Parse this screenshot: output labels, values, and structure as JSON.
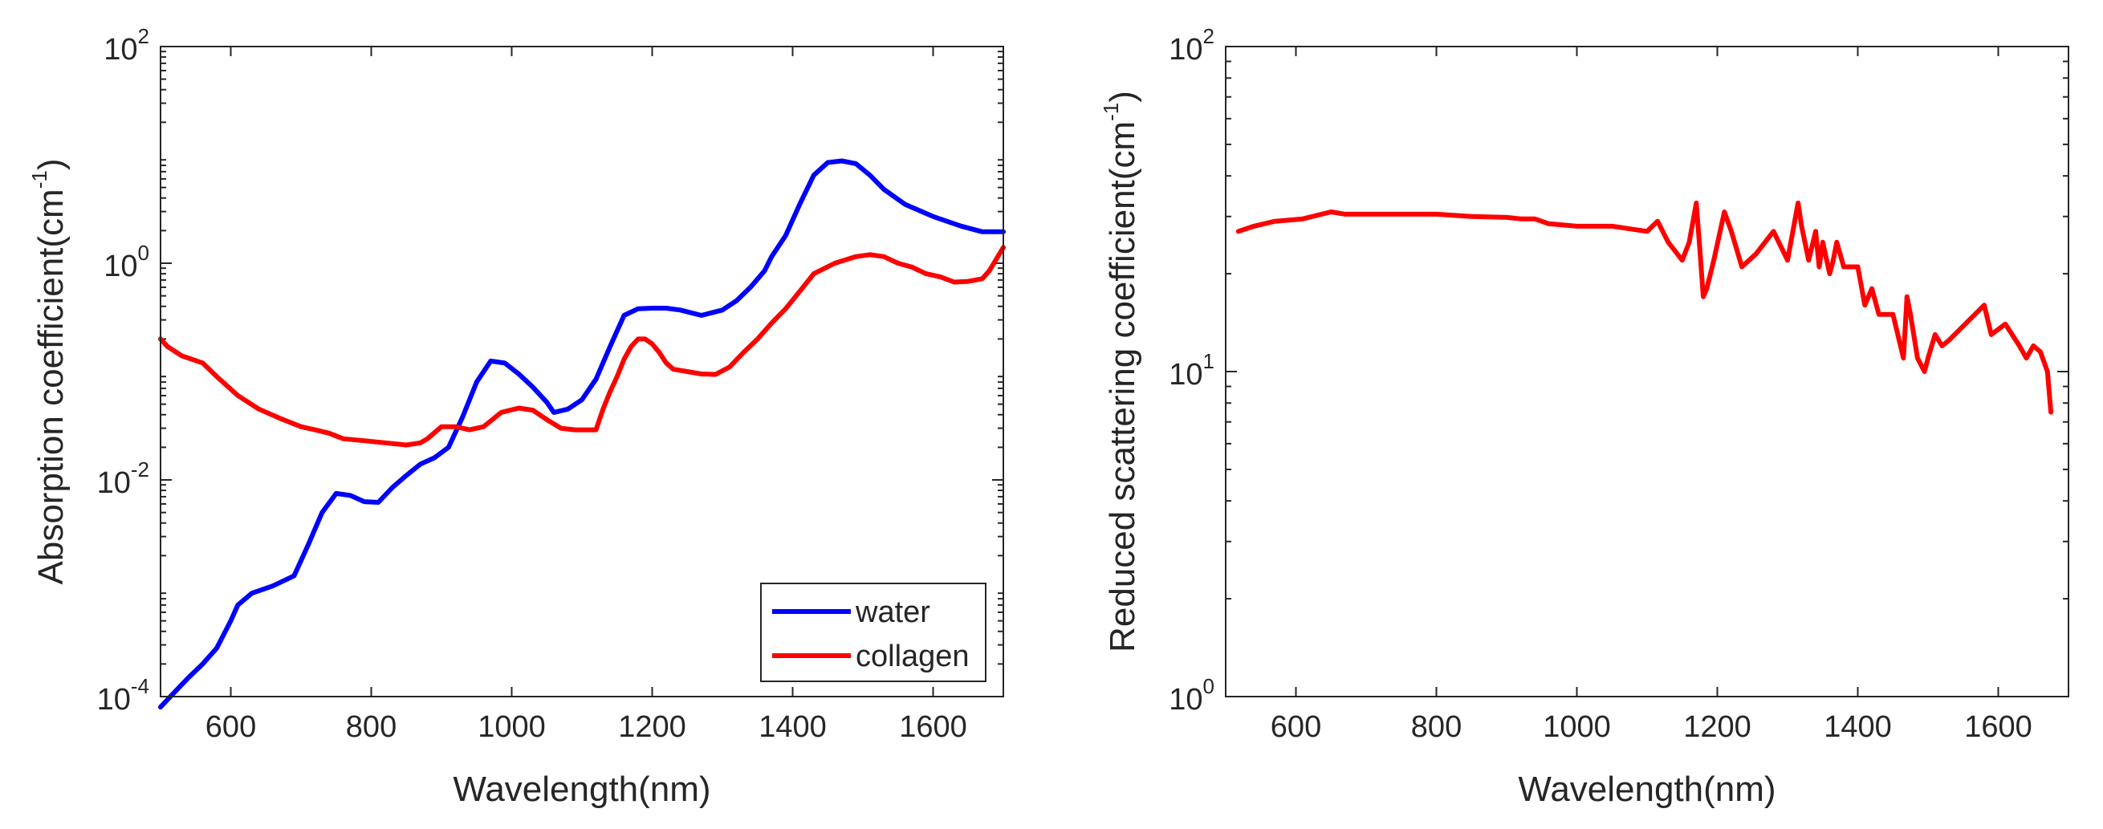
{
  "chart_data": [
    {
      "type": "line",
      "yscale": "log",
      "xlabel": "Wavelength(nm)",
      "ylabel": "Absorption coefficient(cm",
      "ylabel_sup": "-1",
      "ylabel_close": ")",
      "xlim": [
        500,
        1700
      ],
      "ylim": [
        0.0001,
        100
      ],
      "xticks": [
        600,
        800,
        1000,
        1200,
        1400,
        1600
      ],
      "xtick_labels": [
        "600",
        "800",
        "1000",
        "1200",
        "1400",
        "1600"
      ],
      "yticks": [
        0.0001,
        0.01,
        1,
        100
      ],
      "ytick_labels": [
        {
          "base": "10",
          "exp": "-4"
        },
        {
          "base": "10",
          "exp": "-2"
        },
        {
          "base": "10",
          "exp": "0"
        },
        {
          "base": "10",
          "exp": "2"
        }
      ],
      "legend_position": "bottom-right",
      "series": [
        {
          "name": "water",
          "color": "#0000ff",
          "x": [
            500,
            520,
            540,
            560,
            580,
            600,
            610,
            630,
            660,
            690,
            710,
            730,
            750,
            770,
            790,
            810,
            830,
            850,
            870,
            890,
            910,
            930,
            950,
            970,
            990,
            1010,
            1030,
            1050,
            1060,
            1080,
            1100,
            1120,
            1140,
            1160,
            1180,
            1200,
            1220,
            1240,
            1270,
            1300,
            1320,
            1340,
            1360,
            1370,
            1390,
            1410,
            1430,
            1450,
            1470,
            1490,
            1510,
            1530,
            1560,
            1600,
            1640,
            1670,
            1700
          ],
          "y": [
            8e-05,
            0.00011,
            0.00015,
            0.0002,
            0.00028,
            0.0005,
            0.0007,
            0.0009,
            0.00105,
            0.0013,
            0.0025,
            0.005,
            0.0075,
            0.0072,
            0.0063,
            0.0062,
            0.0085,
            0.011,
            0.014,
            0.016,
            0.02,
            0.038,
            0.08,
            0.125,
            0.12,
            0.095,
            0.072,
            0.052,
            0.042,
            0.045,
            0.055,
            0.085,
            0.17,
            0.33,
            0.38,
            0.385,
            0.385,
            0.37,
            0.33,
            0.37,
            0.45,
            0.6,
            0.85,
            1.15,
            1.8,
            3.5,
            6.5,
            8.5,
            8.8,
            8.3,
            6.5,
            4.8,
            3.5,
            2.7,
            2.2,
            1.95,
            1.95
          ]
        },
        {
          "name": "collagen",
          "color": "#ff0000",
          "x": [
            500,
            510,
            530,
            560,
            580,
            610,
            640,
            670,
            700,
            720,
            740,
            760,
            790,
            820,
            850,
            870,
            880,
            900,
            920,
            940,
            960,
            970,
            985,
            1010,
            1030,
            1050,
            1070,
            1090,
            1100,
            1120,
            1130,
            1140,
            1150,
            1160,
            1170,
            1180,
            1190,
            1200,
            1210,
            1220,
            1230,
            1250,
            1270,
            1290,
            1310,
            1330,
            1350,
            1370,
            1390,
            1410,
            1430,
            1460,
            1490,
            1510,
            1530,
            1550,
            1570,
            1590,
            1610,
            1630,
            1650,
            1670,
            1680,
            1700
          ],
          "y": [
            0.2,
            0.17,
            0.14,
            0.12,
            0.09,
            0.06,
            0.045,
            0.037,
            0.031,
            0.029,
            0.027,
            0.024,
            0.023,
            0.022,
            0.021,
            0.022,
            0.024,
            0.031,
            0.031,
            0.029,
            0.031,
            0.035,
            0.042,
            0.046,
            0.044,
            0.036,
            0.03,
            0.029,
            0.029,
            0.029,
            0.045,
            0.065,
            0.09,
            0.13,
            0.17,
            0.2,
            0.2,
            0.18,
            0.15,
            0.12,
            0.105,
            0.1,
            0.095,
            0.094,
            0.11,
            0.15,
            0.2,
            0.28,
            0.38,
            0.55,
            0.8,
            1.0,
            1.15,
            1.2,
            1.15,
            1.0,
            0.92,
            0.8,
            0.75,
            0.67,
            0.68,
            0.72,
            0.85,
            1.4
          ]
        }
      ]
    },
    {
      "type": "line",
      "yscale": "log",
      "xlabel": "Wavelength(nm)",
      "ylabel": "Reduced scattering coefficient(cm",
      "ylabel_sup": "-1",
      "ylabel_close": ")",
      "xlim": [
        500,
        1700
      ],
      "ylim": [
        1,
        100
      ],
      "xticks": [
        600,
        800,
        1000,
        1200,
        1400,
        1600
      ],
      "xtick_labels": [
        "600",
        "800",
        "1000",
        "1200",
        "1400",
        "1600"
      ],
      "yticks": [
        1,
        10,
        100
      ],
      "ytick_labels": [
        {
          "base": "10",
          "exp": "0"
        },
        {
          "base": "10",
          "exp": "1"
        },
        {
          "base": "10",
          "exp": "2"
        }
      ],
      "series": [
        {
          "name": "reduced scattering",
          "color": "#ff0000",
          "x": [
            518,
            540,
            570,
            610,
            650,
            670,
            700,
            750,
            800,
            850,
            900,
            920,
            940,
            960,
            1000,
            1050,
            1100,
            1115,
            1130,
            1150,
            1160,
            1170,
            1175,
            1180,
            1185,
            1195,
            1210,
            1220,
            1235,
            1255,
            1280,
            1300,
            1315,
            1320,
            1330,
            1340,
            1345,
            1350,
            1360,
            1365,
            1370,
            1380,
            1400,
            1410,
            1420,
            1430,
            1450,
            1465,
            1470,
            1475,
            1485,
            1495,
            1500,
            1510,
            1520,
            1530,
            1580,
            1590,
            1610,
            1630,
            1640,
            1650,
            1660,
            1670,
            1675
          ],
          "y": [
            27,
            28,
            29,
            29.5,
            31,
            30.5,
            30.5,
            30.5,
            30.5,
            30,
            29.8,
            29.5,
            29.5,
            28.5,
            28,
            28,
            27,
            29,
            25,
            22,
            25,
            33,
            24,
            17,
            18,
            22,
            31,
            27,
            21,
            23,
            27,
            22,
            33,
            28,
            22,
            27,
            21,
            25,
            20,
            22,
            25,
            21,
            21,
            16,
            18,
            15,
            15,
            11,
            17,
            15,
            11,
            10,
            11,
            13,
            12,
            12.5,
            16,
            13,
            14,
            12,
            11,
            12,
            11.5,
            10,
            7.5
          ]
        }
      ]
    }
  ]
}
